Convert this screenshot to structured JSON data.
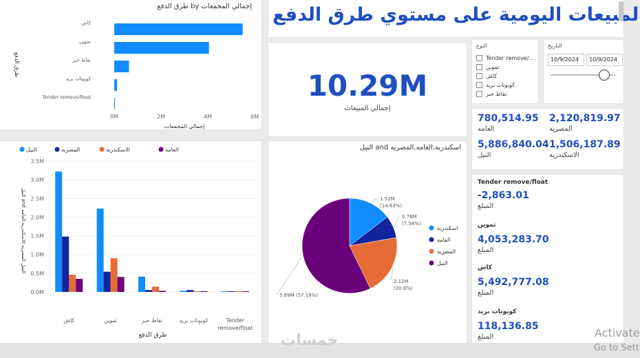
{
  "dashboard": {
    "title": "المبيعات اليومية على مستوي طرق الدفع",
    "total_card": {
      "value": "10.29M",
      "label": "إجمالي المبيعات"
    }
  },
  "filters": {
    "type_title": "النوع",
    "type_options": [
      "Tender remove/...",
      "تموين",
      "كاش",
      "كوبونات بريد",
      "نقاط خبز"
    ],
    "date_title": "التاريخ",
    "date_from": "10/9/2024",
    "date_to": "10/9/2024"
  },
  "regions": [
    {
      "value": "780,514.95",
      "label": "العامه"
    },
    {
      "value": "2,120,819.97",
      "label": "المصريه"
    },
    {
      "value": "5,886,840.04",
      "label": "النيل"
    },
    {
      "value": "1,506,187.89",
      "label": "الاسكندريه"
    }
  ],
  "methods_list": {
    "amount_label": "المبلغ",
    "items": [
      {
        "name": "Tender remove/float",
        "value": "-2,863.01"
      },
      {
        "name": "تموين",
        "value": "4,053,283.70"
      },
      {
        "name": "كاش",
        "value": "5,492,777.08"
      },
      {
        "name": "كوبونات بريد",
        "value": "118,136.85"
      }
    ]
  },
  "footer": {
    "watermark": "خمسات",
    "activate_line1": "Activate",
    "activate_line2": "Go to Sett"
  },
  "colors": {
    "blue": "#118dff",
    "navy": "#12239e",
    "orange": "#e66c37",
    "purple": "#6b007b",
    "kpi": "#1f4fbf"
  },
  "chart_data": [
    {
      "type": "bar",
      "orientation": "horizontal",
      "title": "طرق الدفع by إجمالي المجمعات",
      "xlabel": "إجمالي المجمعات",
      "ylabel": "طرق الدفع",
      "categories": [
        "كاش",
        "تموين",
        "نقاط خبز",
        "كوبونات بريد",
        "Tender remove/float"
      ],
      "values": [
        5.49,
        4.05,
        0.63,
        0.12,
        -0.003
      ],
      "unit": "M",
      "xlim": [
        0,
        6
      ],
      "xticks": [
        "0M",
        "2M",
        "4M",
        "6M"
      ]
    },
    {
      "type": "bar",
      "title": "",
      "xlabel": "طرق الدفع",
      "ylabel": "النيل and الفيل المصريه الاسكندريه العامه",
      "categories": [
        "كاش",
        "تموين",
        "نقاط خبز",
        "كوبونات بريد",
        "Tender remove/float"
      ],
      "series": [
        {
          "name": "النيل",
          "values": [
            3.22,
            2.23,
            0.41,
            0.03,
            0.0
          ]
        },
        {
          "name": "المصريه",
          "values": [
            1.48,
            0.54,
            0.05,
            0.05,
            0.0
          ]
        },
        {
          "name": "الاسكندريه",
          "values": [
            0.46,
            0.9,
            0.14,
            0.02,
            0.0
          ]
        },
        {
          "name": "العامه",
          "values": [
            0.35,
            0.4,
            0.03,
            0.02,
            0.0
          ]
        }
      ],
      "ylim": [
        0,
        3.5
      ],
      "yticks": [
        "0.0M",
        "0.5M",
        "1.0M",
        "1.5M",
        "2.0M",
        "2.5M",
        "3.0M",
        "3.5M"
      ]
    },
    {
      "type": "pie",
      "title": "النيل and اسكندريه,العامه,المصريه",
      "slices": [
        {
          "name": "اسكندريه",
          "value": 1.51,
          "label": "1.51M (14.63%)"
        },
        {
          "name": "العامه",
          "value": 0.78,
          "label": "0.78M (7.58%)"
        },
        {
          "name": "المصريه",
          "value": 2.12,
          "label": "2.12M (20.6%)"
        },
        {
          "name": "النيل",
          "value": 5.89,
          "label": "5.89M (57.19%)"
        }
      ]
    }
  ]
}
